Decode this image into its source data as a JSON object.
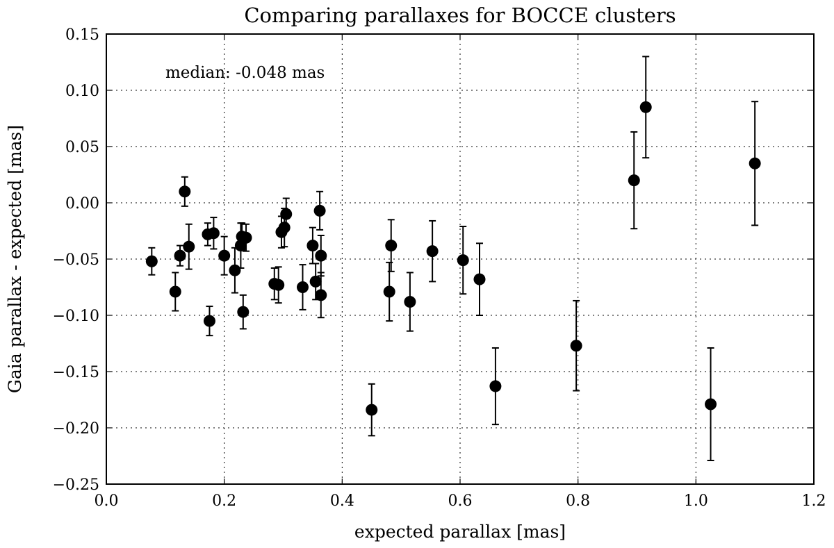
{
  "chart_data": {
    "type": "scatter",
    "title": "Comparing parallaxes for BOCCE clusters",
    "xlabel": "expected parallax [mas]",
    "ylabel": "Gaia parallax - expected [mas]",
    "annotation": "median: -0.048 mas",
    "xlim": [
      0.0,
      1.2
    ],
    "ylim": [
      -0.25,
      0.15
    ],
    "xticks": [
      0.0,
      0.2,
      0.4,
      0.6,
      0.8,
      1.0,
      1.2
    ],
    "xtick_labels": [
      "0.0",
      "0.2",
      "0.4",
      "0.6",
      "0.8",
      "1.0",
      "1.2"
    ],
    "yticks": [
      0.15,
      0.1,
      0.05,
      0.0,
      -0.05,
      -0.1,
      -0.15,
      -0.2,
      -0.25
    ],
    "ytick_labels": [
      "0.15",
      "0.10",
      "0.05",
      "0.00",
      "−0.05",
      "−0.10",
      "−0.15",
      "−0.20",
      "−0.25"
    ],
    "grid": true,
    "points": [
      {
        "x": 0.077,
        "y": -0.052,
        "err": 0.012
      },
      {
        "x": 0.117,
        "y": -0.079,
        "err": 0.017
      },
      {
        "x": 0.125,
        "y": -0.047,
        "err": 0.009
      },
      {
        "x": 0.133,
        "y": 0.01,
        "err": 0.013
      },
      {
        "x": 0.14,
        "y": -0.039,
        "err": 0.02
      },
      {
        "x": 0.172,
        "y": -0.028,
        "err": 0.01
      },
      {
        "x": 0.175,
        "y": -0.105,
        "err": 0.013
      },
      {
        "x": 0.182,
        "y": -0.027,
        "err": 0.014
      },
      {
        "x": 0.2,
        "y": -0.047,
        "err": 0.017
      },
      {
        "x": 0.218,
        "y": -0.06,
        "err": 0.02
      },
      {
        "x": 0.228,
        "y": -0.038,
        "err": 0.02
      },
      {
        "x": 0.23,
        "y": -0.03,
        "err": 0.012
      },
      {
        "x": 0.232,
        "y": -0.097,
        "err": 0.015
      },
      {
        "x": 0.237,
        "y": -0.031,
        "err": 0.012
      },
      {
        "x": 0.285,
        "y": -0.072,
        "err": 0.014
      },
      {
        "x": 0.292,
        "y": -0.073,
        "err": 0.016
      },
      {
        "x": 0.297,
        "y": -0.026,
        "err": 0.014
      },
      {
        "x": 0.302,
        "y": -0.022,
        "err": 0.017
      },
      {
        "x": 0.305,
        "y": -0.01,
        "err": 0.014
      },
      {
        "x": 0.333,
        "y": -0.075,
        "err": 0.02
      },
      {
        "x": 0.35,
        "y": -0.038,
        "err": 0.016
      },
      {
        "x": 0.355,
        "y": -0.07,
        "err": 0.016
      },
      {
        "x": 0.362,
        "y": -0.007,
        "err": 0.017
      },
      {
        "x": 0.364,
        "y": -0.047,
        "err": 0.018
      },
      {
        "x": 0.364,
        "y": -0.082,
        "err": 0.02
      },
      {
        "x": 0.45,
        "y": -0.184,
        "err": 0.023
      },
      {
        "x": 0.48,
        "y": -0.079,
        "err": 0.026
      },
      {
        "x": 0.483,
        "y": -0.038,
        "err": 0.023
      },
      {
        "x": 0.515,
        "y": -0.088,
        "err": 0.026
      },
      {
        "x": 0.553,
        "y": -0.043,
        "err": 0.027
      },
      {
        "x": 0.605,
        "y": -0.051,
        "err": 0.03
      },
      {
        "x": 0.633,
        "y": -0.068,
        "err": 0.032
      },
      {
        "x": 0.66,
        "y": -0.163,
        "err": 0.034
      },
      {
        "x": 0.797,
        "y": -0.127,
        "err": 0.04
      },
      {
        "x": 0.895,
        "y": 0.02,
        "err": 0.043
      },
      {
        "x": 0.915,
        "y": 0.085,
        "err": 0.045
      },
      {
        "x": 1.025,
        "y": -0.179,
        "err": 0.05
      },
      {
        "x": 1.1,
        "y": 0.035,
        "err": 0.055
      }
    ]
  }
}
